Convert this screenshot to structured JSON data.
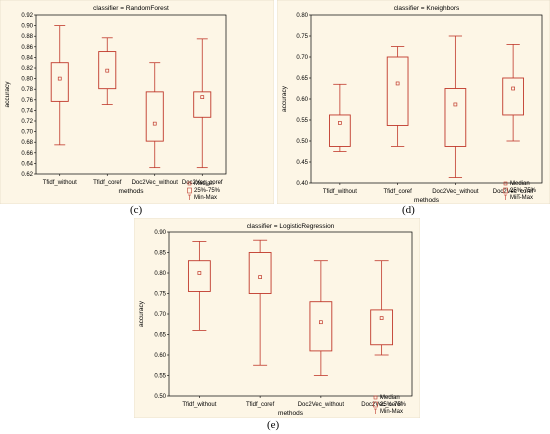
{
  "captions": {
    "c": "(c)",
    "d": "(d)",
    "e": "(e)"
  },
  "colors": {
    "background": "#fdf6e6",
    "box": "#c0392b",
    "axis": "#000000"
  },
  "legend_labels": [
    "Median",
    "25%-75%",
    "Min-Max"
  ],
  "chart_data": [
    {
      "type": "boxplot",
      "title": "classifier = RandomForest",
      "xlabel": "methods",
      "ylabel": "accuracy",
      "ylim": [
        0.62,
        0.92
      ],
      "ytick_step": 0.02,
      "ytick_decimals": 2,
      "legend_position": "bottom-right",
      "categories": [
        "Tfidf_without",
        "Tfidf_coref",
        "Doc2Vec_without",
        "Doc2Vec_coref"
      ],
      "series": [
        {
          "min": 0.675,
          "q1": 0.757,
          "median": 0.8,
          "q3": 0.83,
          "max": 0.9
        },
        {
          "min": 0.751,
          "q1": 0.781,
          "median": 0.815,
          "q3": 0.851,
          "max": 0.877
        },
        {
          "min": 0.632,
          "q1": 0.682,
          "median": 0.715,
          "q3": 0.775,
          "max": 0.83
        },
        {
          "min": 0.632,
          "q1": 0.727,
          "median": 0.765,
          "q3": 0.775,
          "max": 0.875
        }
      ]
    },
    {
      "type": "boxplot",
      "title": "classifier = Kneighbors",
      "xlabel": "methods",
      "ylabel": "accuracy",
      "ylim": [
        0.4,
        0.8
      ],
      "ytick_step": 0.05,
      "ytick_decimals": 2,
      "legend_position": "bottom-right",
      "categories": [
        "Tfidf_without",
        "Tfidf_coref",
        "Doc2Vec_without",
        "Doc2Vec_coref"
      ],
      "series": [
        {
          "min": 0.475,
          "q1": 0.487,
          "median": 0.543,
          "q3": 0.562,
          "max": 0.635
        },
        {
          "min": 0.487,
          "q1": 0.537,
          "median": 0.637,
          "q3": 0.7,
          "max": 0.725
        },
        {
          "min": 0.413,
          "q1": 0.487,
          "median": 0.587,
          "q3": 0.625,
          "max": 0.75
        },
        {
          "min": 0.5,
          "q1": 0.562,
          "median": 0.625,
          "q3": 0.65,
          "max": 0.73
        }
      ]
    },
    {
      "type": "boxplot",
      "title": "classifier = LogisticRegression",
      "xlabel": "methods",
      "ylabel": "accuracy",
      "ylim": [
        0.5,
        0.9
      ],
      "ytick_step": 0.05,
      "ytick_decimals": 2,
      "legend_position": "bottom-right",
      "categories": [
        "Tfidf_without",
        "Tfidf_coref",
        "Doc2Vec_without",
        "Doc2Vec_coref"
      ],
      "series": [
        {
          "min": 0.66,
          "q1": 0.755,
          "median": 0.8,
          "q3": 0.83,
          "max": 0.877
        },
        {
          "min": 0.575,
          "q1": 0.75,
          "median": 0.79,
          "q3": 0.85,
          "max": 0.88
        },
        {
          "min": 0.55,
          "q1": 0.61,
          "median": 0.68,
          "q3": 0.73,
          "max": 0.83
        },
        {
          "min": 0.6,
          "q1": 0.625,
          "median": 0.69,
          "q3": 0.71,
          "max": 0.83
        }
      ]
    }
  ]
}
